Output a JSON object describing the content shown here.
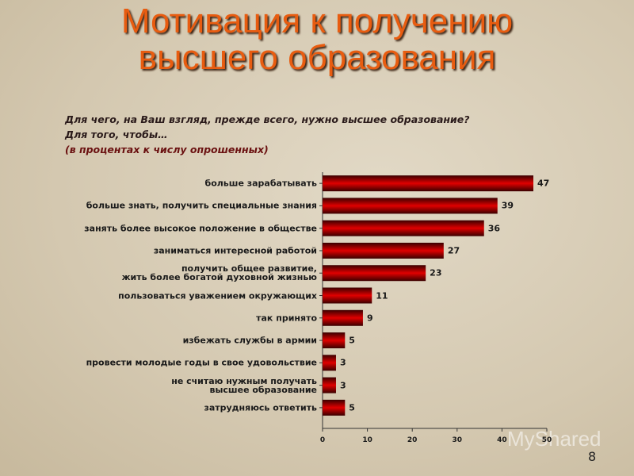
{
  "chart_data": {
    "type": "hbar",
    "title": "Мотивация к получению\nвысшего образования",
    "subtitle": [
      "Для чего, на Ваш взгляд, прежде всего, нужно высшее образование?",
      "Для того, чтобы…",
      "(в процентах к числу опрошенных)"
    ],
    "categories": [
      "больше зарабатывать",
      "больше знать, получить специальные знания",
      "занять более высокое положение в обществе",
      "заниматься интересной работой",
      "получить общее развитие,\nжить более богатой духовной жизнью",
      "пользоваться уважением окружающих",
      "так принято",
      "избежать службы в армии",
      "провести молодые годы в свое удовольствие",
      "не считаю нужным получать\nвысшее образование",
      "затрудняюсь ответить"
    ],
    "values": [
      47,
      39,
      36,
      27,
      23,
      11,
      9,
      5,
      3,
      3,
      5
    ],
    "color": "#e00000",
    "xlim": [
      0,
      50
    ],
    "xticks": [
      0,
      10,
      20,
      30,
      40,
      50
    ]
  },
  "watermark": "MyShared",
  "page_number": "8"
}
